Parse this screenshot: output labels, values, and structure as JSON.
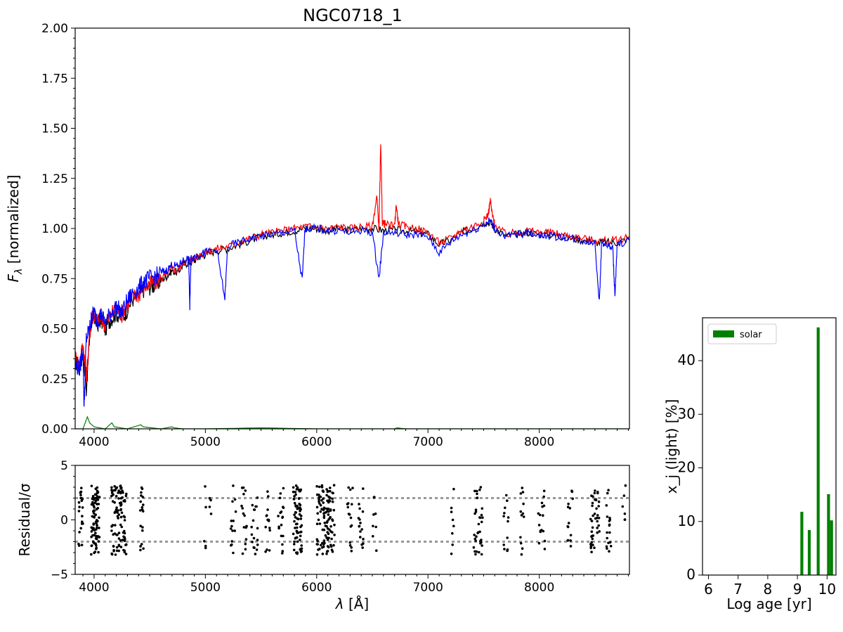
{
  "figure_title": "NGC0718_1",
  "chart_data": [
    {
      "id": "spectrum",
      "type": "line",
      "title": "NGC0718_1",
      "xlabel_var": "λ",
      "xlabel_unit": "[Å]",
      "ylabel_var": "F",
      "ylabel_sub": "λ",
      "ylabel_unit": "[normalized]",
      "xlim": [
        3830,
        8810
      ],
      "ylim": [
        0,
        2
      ],
      "xticks": [
        4000,
        5000,
        6000,
        7000,
        8000
      ],
      "yticks": [
        "0.00",
        "0.25",
        "0.50",
        "0.75",
        "1.00",
        "1.25",
        "1.50",
        "1.75",
        "2.00"
      ],
      "grid": false,
      "series": [
        {
          "role": "observed",
          "color": "#000000",
          "x": [
            3830,
            3870,
            3900,
            3930,
            3960,
            3980,
            4000,
            4030,
            4060,
            4100,
            4150,
            4200,
            4250,
            4300,
            4350,
            4400,
            4450,
            4500,
            4550,
            4600,
            4650,
            4700,
            4750,
            4800,
            4850,
            4900,
            4950,
            5000,
            5100,
            5200,
            5300,
            5400,
            5500,
            5600,
            5700,
            5800,
            5900,
            6000,
            6100,
            6200,
            6300,
            6400,
            6500,
            6600,
            6700,
            6800,
            6900,
            7000,
            7100,
            7200,
            7300,
            7400,
            7500,
            7560,
            7600,
            7700,
            7800,
            7900,
            8000,
            8100,
            8200,
            8300,
            8400,
            8500,
            8600,
            8700,
            8810
          ],
          "y": [
            0.34,
            0.3,
            0.38,
            0.2,
            0.46,
            0.55,
            0.56,
            0.52,
            0.55,
            0.5,
            0.55,
            0.58,
            0.55,
            0.6,
            0.65,
            0.66,
            0.7,
            0.71,
            0.72,
            0.74,
            0.76,
            0.79,
            0.78,
            0.82,
            0.83,
            0.84,
            0.86,
            0.87,
            0.89,
            0.9,
            0.92,
            0.94,
            0.96,
            0.97,
            0.98,
            0.99,
            1.0,
            1.0,
            0.99,
            1.0,
            0.99,
            1.0,
            1.0,
            0.99,
            0.99,
            0.99,
            0.98,
            0.97,
            0.92,
            0.94,
            0.98,
            1.0,
            1.03,
            1.03,
            1.0,
            0.96,
            0.97,
            0.98,
            0.97,
            0.97,
            0.96,
            0.95,
            0.94,
            0.93,
            0.93,
            0.93,
            0.95
          ]
        },
        {
          "role": "observed_with_emission",
          "color": "#ff0000",
          "x": [
            3830,
            3870,
            3900,
            3930,
            3960,
            3980,
            4000,
            4030,
            4060,
            4100,
            4150,
            4200,
            4250,
            4300,
            4350,
            4400,
            4450,
            4500,
            4550,
            4600,
            4650,
            4700,
            4750,
            4800,
            4850,
            4900,
            4950,
            5000,
            5100,
            5200,
            5300,
            5400,
            5500,
            5600,
            5700,
            5800,
            5900,
            6000,
            6100,
            6200,
            6300,
            6400,
            6500,
            6540,
            6560,
            6575,
            6590,
            6620,
            6700,
            6715,
            6735,
            6800,
            6900,
            7000,
            7100,
            7200,
            7300,
            7400,
            7500,
            7540,
            7560,
            7580,
            7600,
            7700,
            7800,
            7900,
            8000,
            8100,
            8200,
            8300,
            8400,
            8500,
            8600,
            8700,
            8810
          ],
          "y": [
            0.36,
            0.32,
            0.43,
            0.25,
            0.47,
            0.56,
            0.57,
            0.53,
            0.56,
            0.52,
            0.57,
            0.6,
            0.57,
            0.62,
            0.66,
            0.67,
            0.71,
            0.72,
            0.73,
            0.75,
            0.77,
            0.8,
            0.79,
            0.83,
            0.84,
            0.85,
            0.87,
            0.88,
            0.9,
            0.91,
            0.93,
            0.95,
            0.97,
            0.98,
            0.99,
            1.0,
            1.01,
            1.01,
            1.0,
            1.01,
            1.0,
            1.01,
            1.01,
            1.16,
            1.0,
            1.42,
            1.03,
            1.02,
            1.01,
            1.12,
            1.02,
            1.01,
            1.0,
            0.98,
            0.93,
            0.95,
            0.99,
            1.01,
            1.04,
            1.07,
            1.14,
            1.06,
            1.02,
            0.97,
            0.98,
            0.99,
            0.98,
            0.98,
            0.97,
            0.96,
            0.95,
            0.94,
            0.94,
            0.94,
            0.96
          ]
        },
        {
          "role": "model",
          "color": "#0000ff",
          "x": [
            3830,
            3870,
            3900,
            3910,
            3930,
            3960,
            3980,
            4000,
            4030,
            4060,
            4100,
            4150,
            4200,
            4250,
            4300,
            4350,
            4400,
            4450,
            4500,
            4550,
            4600,
            4650,
            4700,
            4750,
            4800,
            4850,
            4860,
            4870,
            4900,
            4950,
            5000,
            5100,
            5175,
            5200,
            5300,
            5400,
            5500,
            5600,
            5700,
            5800,
            5870,
            5895,
            5920,
            6000,
            6100,
            6200,
            6300,
            6400,
            6500,
            6560,
            6600,
            6700,
            6800,
            6900,
            7000,
            7100,
            7200,
            7300,
            7400,
            7500,
            7560,
            7600,
            7700,
            7800,
            7900,
            8000,
            8100,
            8200,
            8300,
            8400,
            8500,
            8540,
            8560,
            8600,
            8660,
            8680,
            8700,
            8810
          ],
          "y": [
            0.32,
            0.3,
            0.4,
            0.1,
            0.45,
            0.5,
            0.56,
            0.58,
            0.54,
            0.57,
            0.53,
            0.58,
            0.61,
            0.58,
            0.64,
            0.68,
            0.7,
            0.74,
            0.75,
            0.76,
            0.78,
            0.79,
            0.82,
            0.81,
            0.84,
            0.85,
            0.6,
            0.85,
            0.86,
            0.87,
            0.88,
            0.9,
            0.65,
            0.91,
            0.93,
            0.95,
            0.96,
            0.97,
            0.98,
            0.99,
            0.74,
            1.0,
            1.0,
            1.0,
            0.99,
            0.99,
            0.98,
            0.99,
            0.98,
            0.75,
            0.98,
            0.98,
            0.97,
            0.97,
            0.96,
            0.88,
            0.93,
            0.97,
            0.99,
            1.02,
            1.04,
            1.0,
            0.96,
            0.97,
            0.98,
            0.97,
            0.96,
            0.96,
            0.95,
            0.94,
            0.93,
            0.63,
            0.93,
            0.92,
            0.9,
            0.66,
            0.92,
            0.94
          ]
        },
        {
          "role": "residual_spectrum",
          "color": "#008000",
          "x": [
            3830,
            3900,
            3940,
            3960,
            4000,
            4100,
            4160,
            4180,
            4300,
            4420,
            4440,
            4600,
            4700,
            4720,
            4800,
            5000,
            5500,
            6000,
            6500,
            6700,
            6720,
            6800,
            8810
          ],
          "y": [
            0.0,
            0.0,
            0.06,
            0.03,
            0.01,
            0.0,
            0.03,
            0.01,
            0.0,
            0.02,
            0.01,
            0.0,
            0.01,
            0.005,
            0.0,
            0.0,
            0.005,
            0.0,
            0.0,
            0.0,
            0.005,
            0.0,
            0.0
          ]
        }
      ]
    },
    {
      "id": "residuals",
      "type": "scatter",
      "xlabel_var": "λ",
      "xlabel_unit": "[Å]",
      "ylabel_var": "Residual/σ",
      "xlim": [
        3830,
        8810
      ],
      "ylim": [
        -5,
        5
      ],
      "xticks": [
        4000,
        5000,
        6000,
        7000,
        8000
      ],
      "yticks": [
        "−5",
        "0",
        "5"
      ],
      "reference_lines": [
        2,
        -2
      ],
      "point_color": "#000000",
      "clusters": [
        {
          "x_center": 3880,
          "x_width": 40,
          "count": 22
        },
        {
          "x_center": 4010,
          "x_width": 80,
          "count": 85
        },
        {
          "x_center": 4190,
          "x_width": 70,
          "count": 50
        },
        {
          "x_center": 4260,
          "x_width": 60,
          "count": 45
        },
        {
          "x_center": 4430,
          "x_width": 30,
          "count": 18
        },
        {
          "x_center": 5000,
          "x_width": 25,
          "count": 5
        },
        {
          "x_center": 5050,
          "x_width": 25,
          "count": 4
        },
        {
          "x_center": 5250,
          "x_width": 60,
          "count": 14
        },
        {
          "x_center": 5350,
          "x_width": 60,
          "count": 16
        },
        {
          "x_center": 5440,
          "x_width": 60,
          "count": 18
        },
        {
          "x_center": 5560,
          "x_width": 40,
          "count": 14
        },
        {
          "x_center": 5680,
          "x_width": 50,
          "count": 18
        },
        {
          "x_center": 5830,
          "x_width": 80,
          "count": 70
        },
        {
          "x_center": 6080,
          "x_width": 160,
          "count": 110
        },
        {
          "x_center": 6300,
          "x_width": 50,
          "count": 16
        },
        {
          "x_center": 6400,
          "x_width": 50,
          "count": 16
        },
        {
          "x_center": 6520,
          "x_width": 40,
          "count": 8
        },
        {
          "x_center": 7220,
          "x_width": 25,
          "count": 8
        },
        {
          "x_center": 7450,
          "x_width": 80,
          "count": 35
        },
        {
          "x_center": 7700,
          "x_width": 50,
          "count": 12
        },
        {
          "x_center": 7850,
          "x_width": 50,
          "count": 12
        },
        {
          "x_center": 8020,
          "x_width": 60,
          "count": 16
        },
        {
          "x_center": 8280,
          "x_width": 50,
          "count": 14
        },
        {
          "x_center": 8500,
          "x_width": 80,
          "count": 40
        },
        {
          "x_center": 8620,
          "x_width": 50,
          "count": 18
        },
        {
          "x_center": 8760,
          "x_width": 30,
          "count": 6
        }
      ]
    },
    {
      "id": "ages",
      "type": "bar",
      "xlabel": "Log age [yr]",
      "ylabel": "x_j (light) [%]",
      "xlim": [
        5.8,
        10.3
      ],
      "ylim": [
        0,
        48
      ],
      "xticks": [
        6,
        7,
        8,
        9,
        10
      ],
      "yticks": [
        0,
        10,
        20,
        30,
        40
      ],
      "bar_color": "#008000",
      "bar_width": 0.1,
      "series": [
        {
          "name": "solar",
          "x": [
            9.15,
            9.4,
            9.7,
            10.05,
            10.15
          ],
          "values": [
            11.8,
            8.4,
            46.2,
            15.1,
            10.2
          ]
        }
      ],
      "legend": "top-left"
    }
  ]
}
